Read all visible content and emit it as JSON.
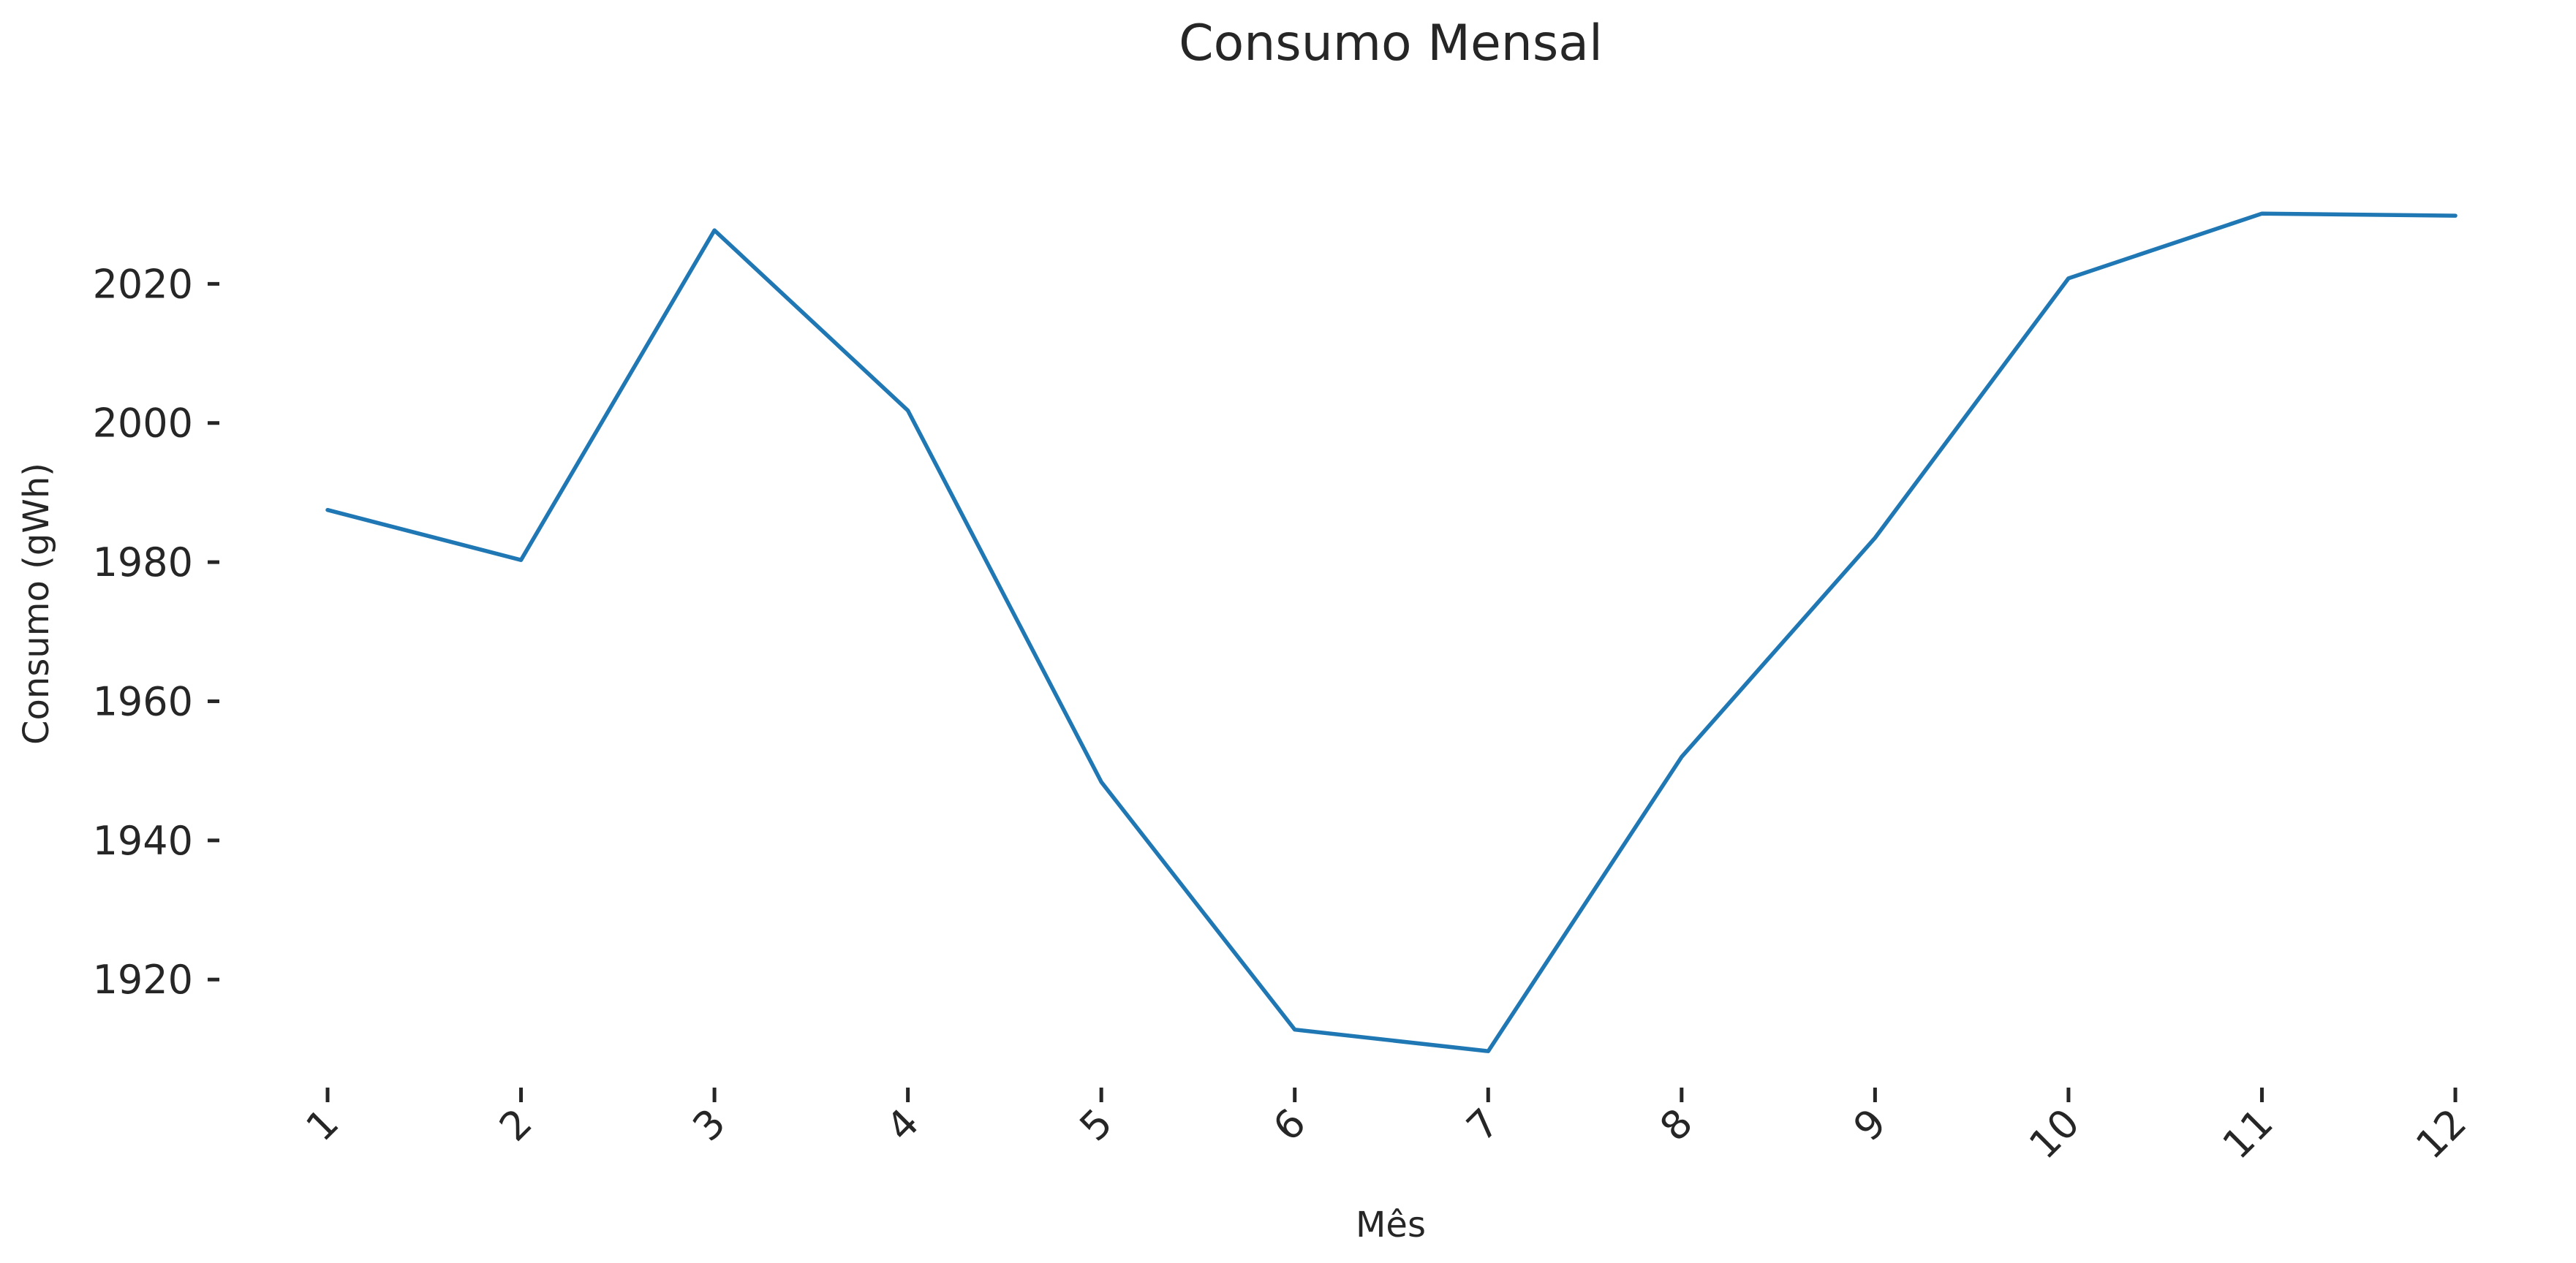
{
  "chart_data": {
    "type": "line",
    "title": "Consumo Mensal",
    "xlabel": "Mês",
    "ylabel": "Consumo (gWh)",
    "x": [
      1,
      2,
      3,
      4,
      5,
      6,
      7,
      8,
      9,
      10,
      11,
      12
    ],
    "xtick_labels": [
      "1",
      "2",
      "3",
      "4",
      "5",
      "6",
      "7",
      "8",
      "9",
      "10",
      "11",
      "12"
    ],
    "xtick_rotation": 45,
    "yticks": [
      1920,
      1940,
      1960,
      1980,
      2000,
      2020
    ],
    "ytick_labels": [
      "1920",
      "1940",
      "1960",
      "1980",
      "2000",
      "2020"
    ],
    "ylim": [
      1903,
      2040
    ],
    "grid": false,
    "series": [
      {
        "color": "#1f77b4",
        "values": [
          1987.5,
          1980.3,
          2027.7,
          2001.8,
          1948.4,
          1912.8,
          1909.7,
          1952.0,
          1983.5,
          2020.8,
          2030.1,
          2029.8
        ]
      }
    ]
  }
}
